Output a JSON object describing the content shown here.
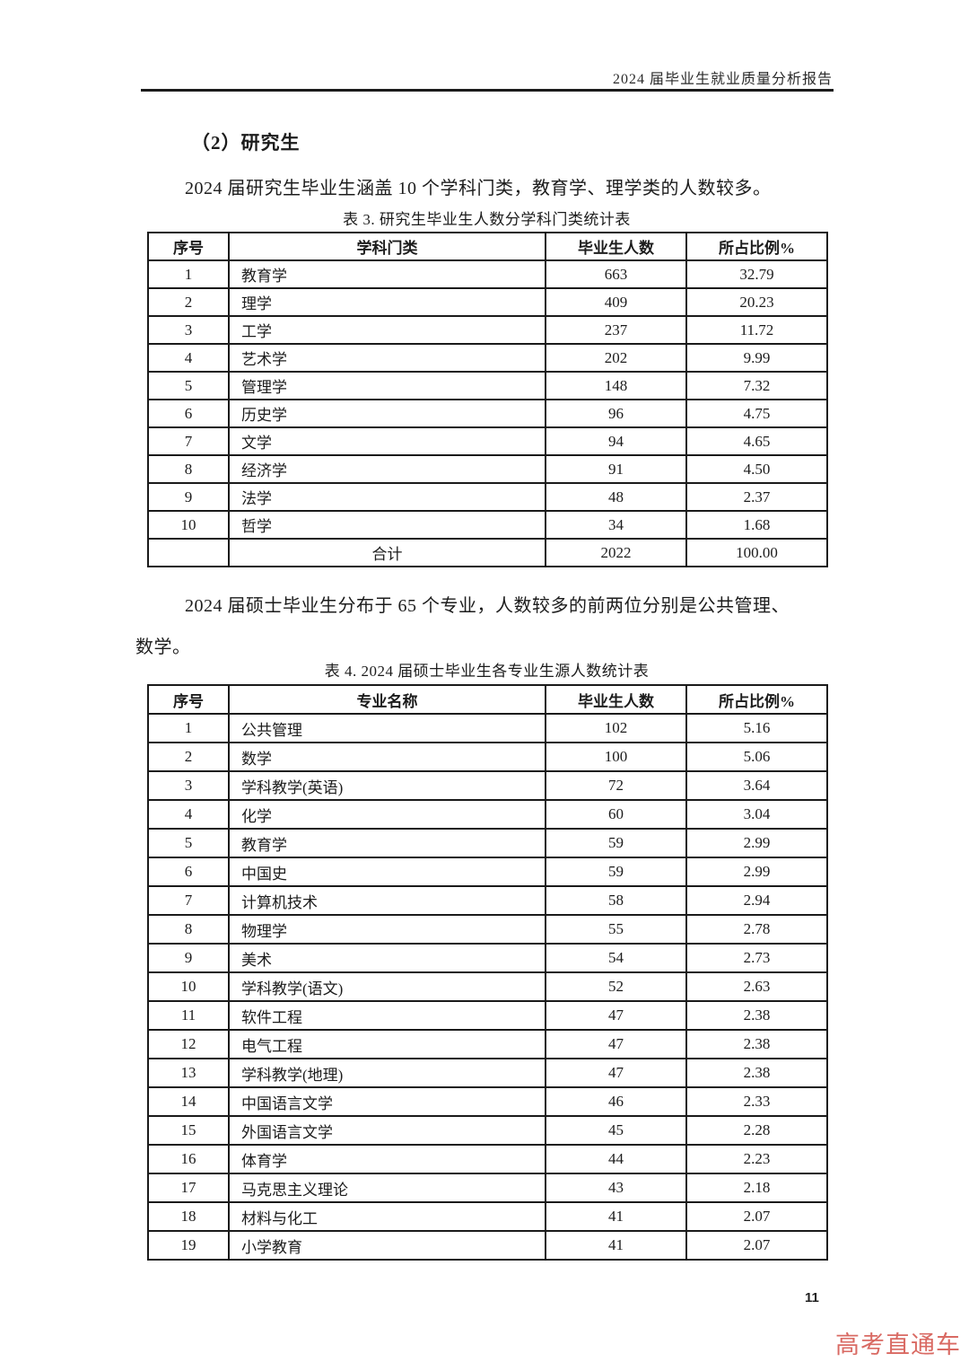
{
  "header": {
    "title": "2024 届毕业生就业质量分析报告"
  },
  "section": {
    "title": "（2）研究生",
    "paragraph1": "2024 届研究生毕业生涵盖 10 个学科门类，教育学、理学类的人数较多。",
    "paragraph2": "2024 届硕士毕业生分布于 65 个专业，人数较多的前两位分别是公共管理、数学。"
  },
  "table3": {
    "caption": "表 3. 研究生毕业生人数分学科门类统计表",
    "headers": [
      "序号",
      "学科门类",
      "毕业生人数",
      "所占比例%"
    ],
    "rows": [
      [
        "1",
        "教育学",
        "663",
        "32.79"
      ],
      [
        "2",
        "理学",
        "409",
        "20.23"
      ],
      [
        "3",
        "工学",
        "237",
        "11.72"
      ],
      [
        "4",
        "艺术学",
        "202",
        "9.99"
      ],
      [
        "5",
        "管理学",
        "148",
        "7.32"
      ],
      [
        "6",
        "历史学",
        "96",
        "4.75"
      ],
      [
        "7",
        "文学",
        "94",
        "4.65"
      ],
      [
        "8",
        "经济学",
        "91",
        "4.50"
      ],
      [
        "9",
        "法学",
        "48",
        "2.37"
      ],
      [
        "10",
        "哲学",
        "34",
        "1.68"
      ]
    ],
    "total_row": [
      "",
      "合计",
      "2022",
      "100.00"
    ]
  },
  "table4": {
    "caption": "表 4. 2024 届硕士毕业生各专业生源人数统计表",
    "headers": [
      "序号",
      "专业名称",
      "毕业生人数",
      "所占比例%"
    ],
    "rows": [
      [
        "1",
        "公共管理",
        "102",
        "5.16"
      ],
      [
        "2",
        "数学",
        "100",
        "5.06"
      ],
      [
        "3",
        "学科教学(英语)",
        "72",
        "3.64"
      ],
      [
        "4",
        "化学",
        "60",
        "3.04"
      ],
      [
        "5",
        "教育学",
        "59",
        "2.99"
      ],
      [
        "6",
        "中国史",
        "59",
        "2.99"
      ],
      [
        "7",
        "计算机技术",
        "58",
        "2.94"
      ],
      [
        "8",
        "物理学",
        "55",
        "2.78"
      ],
      [
        "9",
        "美术",
        "54",
        "2.73"
      ],
      [
        "10",
        "学科教学(语文)",
        "52",
        "2.63"
      ],
      [
        "11",
        "软件工程",
        "47",
        "2.38"
      ],
      [
        "12",
        "电气工程",
        "47",
        "2.38"
      ],
      [
        "13",
        "学科教学(地理)",
        "47",
        "2.38"
      ],
      [
        "14",
        "中国语言文学",
        "46",
        "2.33"
      ],
      [
        "15",
        "外国语言文学",
        "45",
        "2.28"
      ],
      [
        "16",
        "体育学",
        "44",
        "2.23"
      ],
      [
        "17",
        "马克思主义理论",
        "43",
        "2.18"
      ],
      [
        "18",
        "材料与化工",
        "41",
        "2.07"
      ],
      [
        "19",
        "小学教育",
        "41",
        "2.07"
      ]
    ]
  },
  "footer": {
    "page_number": "11",
    "watermark": "高考直通车",
    "watermark_color": "#d96a63"
  }
}
